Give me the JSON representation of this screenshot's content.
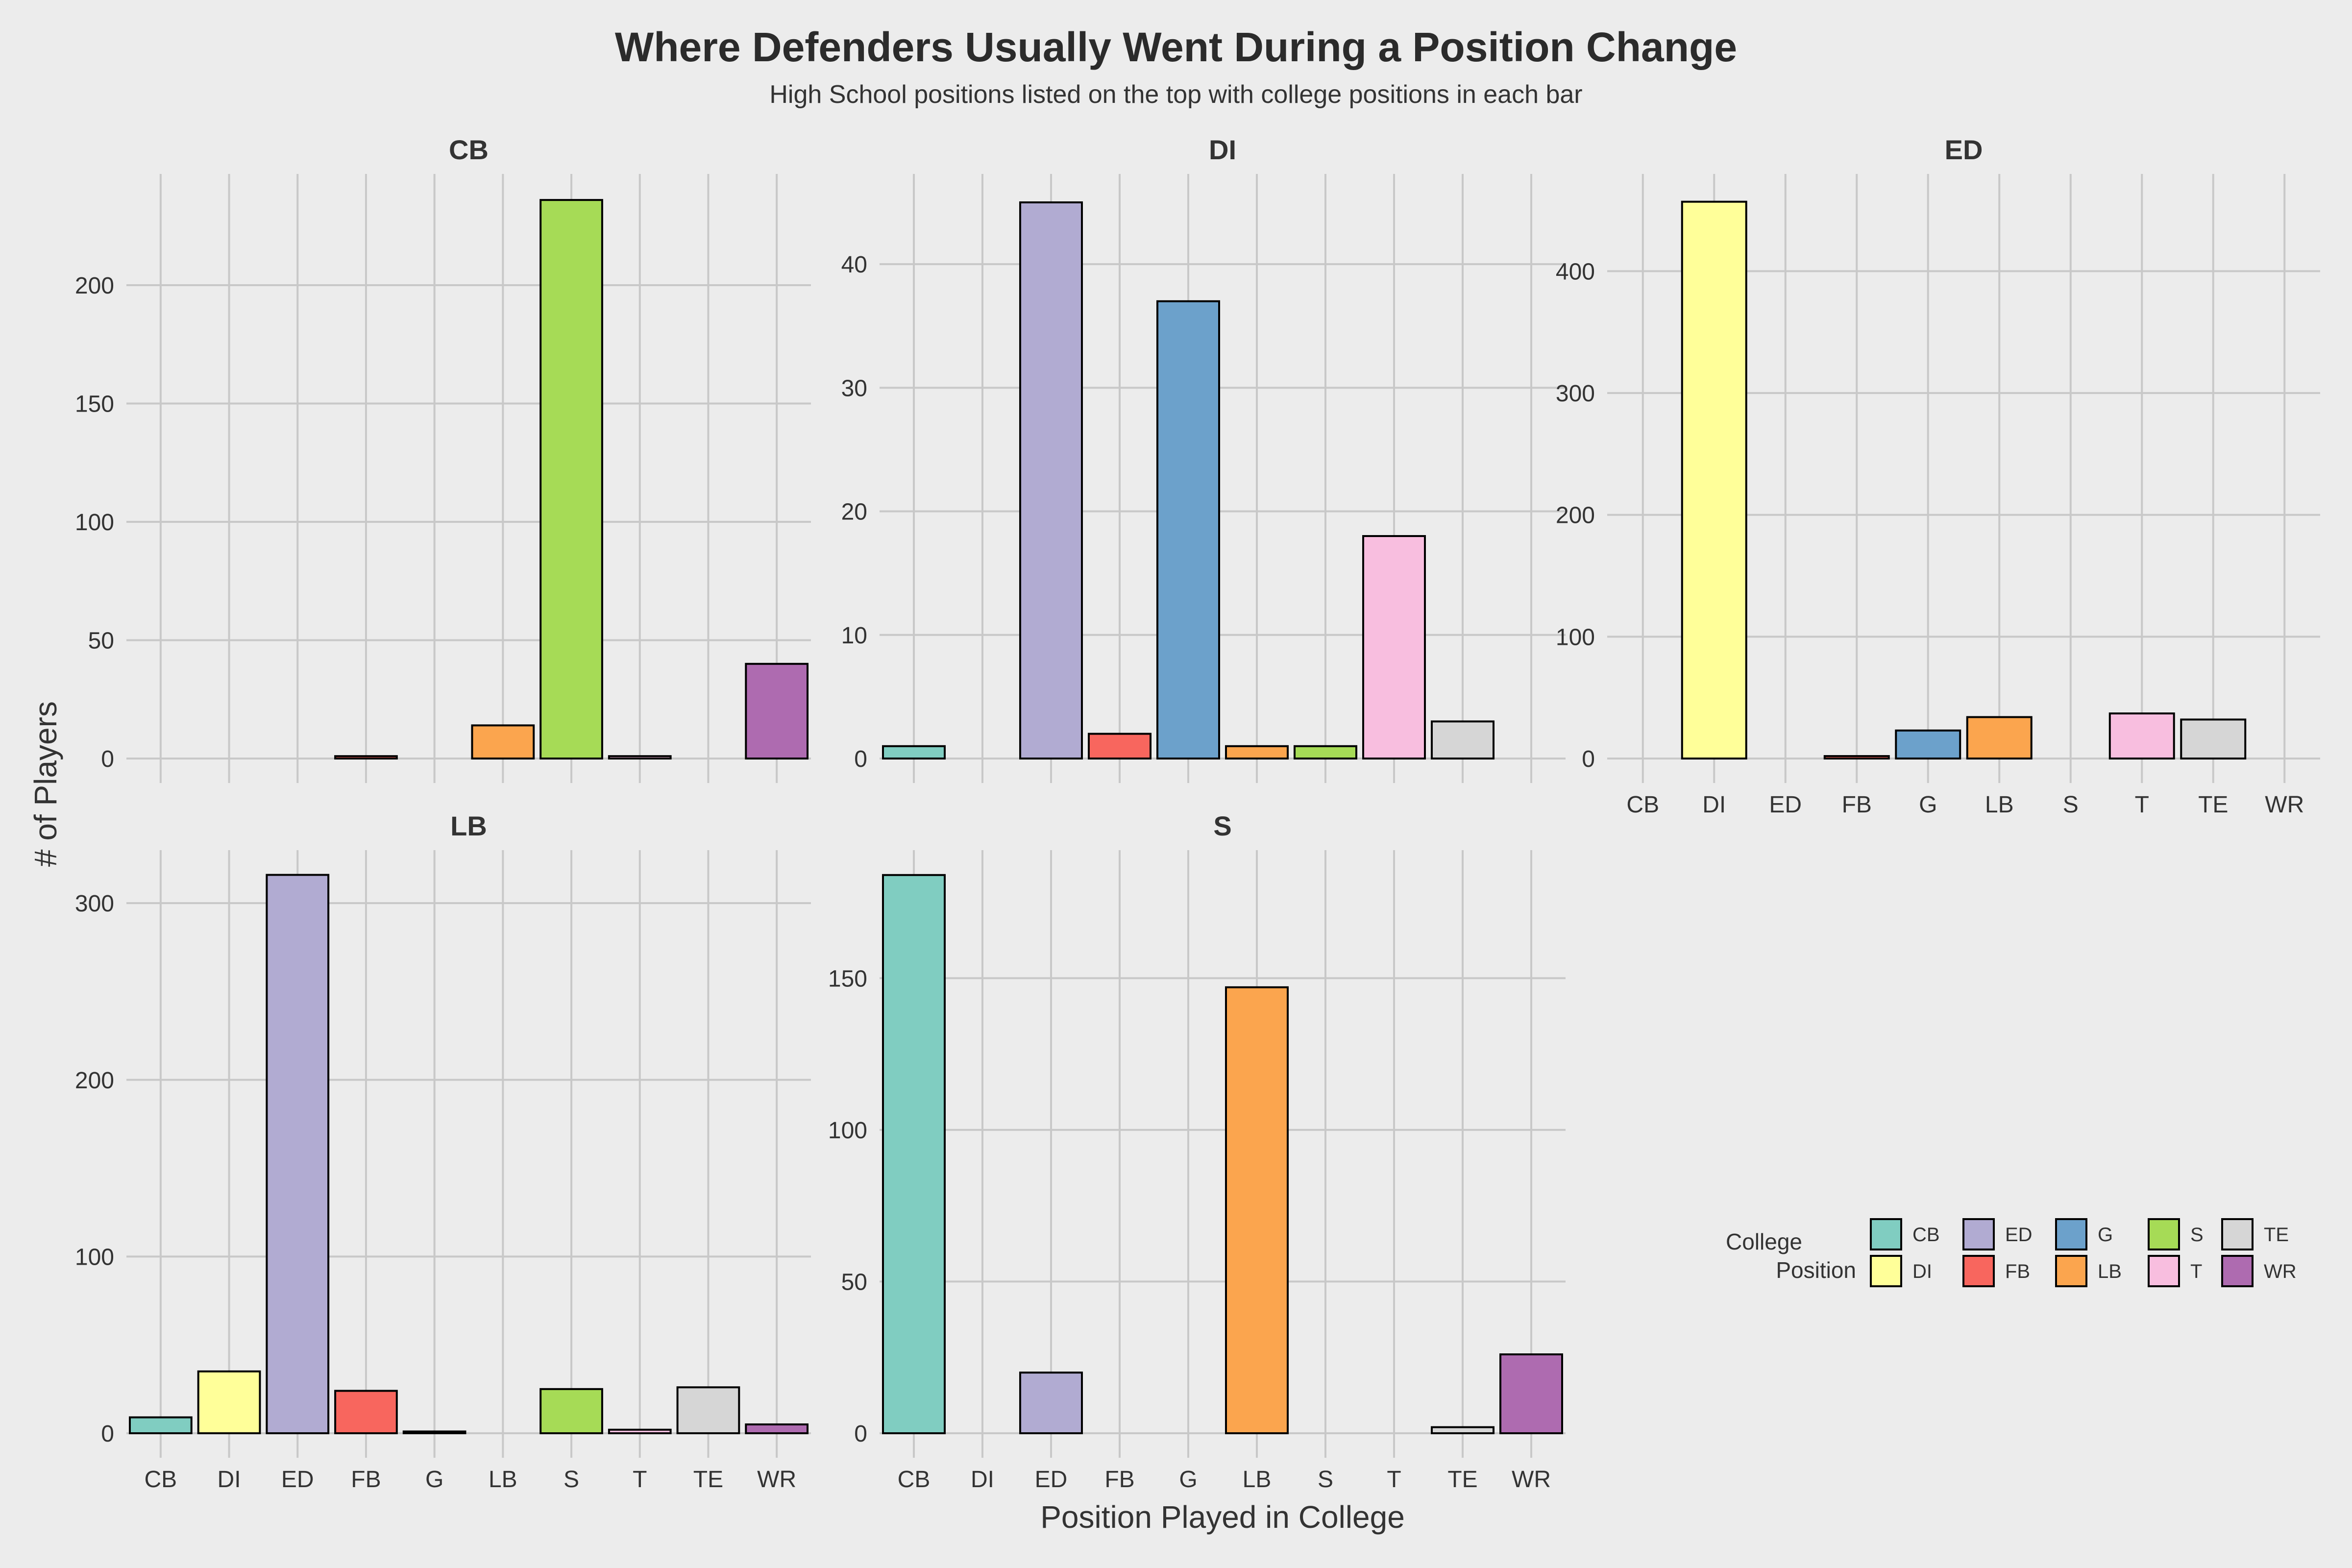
{
  "title": "Where Defenders Usually Went During a Position Change",
  "subtitle": "High School positions listed on the top with college positions in each bar",
  "chart_data": {
    "type": "bar",
    "layout": "facet-wrap",
    "xlabel": "Position Played in College",
    "ylabel": "# of Players",
    "categories": [
      "CB",
      "DI",
      "ED",
      "FB",
      "G",
      "LB",
      "S",
      "T",
      "TE",
      "WR"
    ],
    "grid": true,
    "legend": {
      "title": "College Position",
      "placement": "bottom-right",
      "entries": [
        "CB",
        "DI",
        "ED",
        "FB",
        "G",
        "LB",
        "S",
        "T",
        "TE",
        "WR"
      ]
    },
    "colors": {
      "CB": "#80cdc1",
      "DI": "#ffff99",
      "ED": "#b1abd2",
      "FB": "#f8665e",
      "G": "#6ca1cb",
      "LB": "#fba54e",
      "S": "#a6db56",
      "T": "#f8bedf",
      "TE": "#d6d6d6",
      "WR": "#ae6bb0"
    },
    "facets": [
      {
        "title": "CB",
        "values": [
          0,
          0,
          0,
          1,
          0,
          14,
          236,
          1,
          0,
          40
        ],
        "ylim": [
          0,
          247
        ],
        "yticks": [
          0,
          50,
          100,
          150,
          200
        ]
      },
      {
        "title": "DI",
        "values": [
          1,
          0,
          45,
          2,
          37,
          1,
          1,
          18,
          3,
          0
        ],
        "ylim": [
          0,
          47.3
        ],
        "yticks": [
          0,
          10,
          20,
          30,
          40
        ]
      },
      {
        "title": "ED",
        "values": [
          0,
          457,
          0,
          2,
          23,
          34,
          0,
          37,
          32,
          0
        ],
        "ylim": [
          0,
          479.8
        ],
        "yticks": [
          0,
          100,
          200,
          300,
          400
        ]
      },
      {
        "title": "LB",
        "values": [
          9,
          35,
          316,
          24,
          1,
          0,
          25,
          2,
          26,
          5
        ],
        "ylim": [
          0,
          330
        ],
        "yticks": [
          0,
          100,
          200,
          300
        ]
      },
      {
        "title": "S",
        "values": [
          184,
          0,
          20,
          0,
          0,
          147,
          0,
          0,
          2,
          26
        ],
        "ylim": [
          0,
          192.2
        ],
        "yticks": [
          0,
          50,
          100,
          150
        ]
      }
    ]
  }
}
